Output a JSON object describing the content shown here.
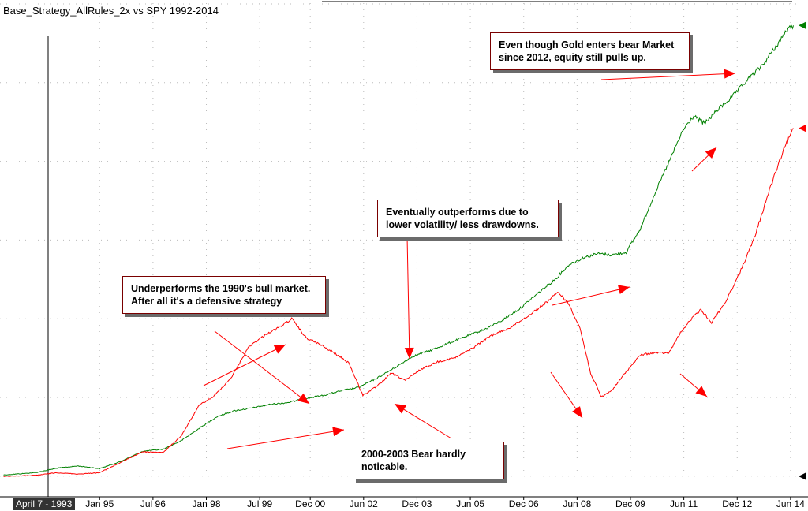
{
  "title": "Base_Strategy_AllRules_2x vs SPY 1992-2014",
  "crosshair_date": "April 7 - 1993",
  "colors": {
    "strategy": "#008000",
    "spy": "#ff0000",
    "annotation_arrow": "#ff0000",
    "callout_border": "#7a0000"
  },
  "annotations": [
    {
      "text": "Even though Gold enters bear Market since 2012, equity still pulls up."
    },
    {
      "text": "Eventually outperforms due to lower volatility/ less drawdowns."
    },
    {
      "text": "Underperforms the 1990's bull market. After all it's a defensive strategy"
    },
    {
      "text": "2000-2003 Bear hardly noticable."
    }
  ],
  "chart_data": {
    "type": "line",
    "title": "Base_Strategy_AllRules_2x vs SPY 1992-2014",
    "x_tick_labels": [
      "Jan 95",
      "Jul 96",
      "Jan 98",
      "Jul 99",
      "Dec 00",
      "Jun 02",
      "Dec 03",
      "Jun 05",
      "Dec 06",
      "Jun 08",
      "Dec 09",
      "Jun 11",
      "Dec 12",
      "Jun 14"
    ],
    "x_tick_values": [
      1995.0,
      1996.5,
      1998.0,
      1999.5,
      2000.92,
      2002.42,
      2003.92,
      2005.42,
      2006.92,
      2008.42,
      2009.92,
      2011.42,
      2012.92,
      2014.42
    ],
    "xlim": [
      1992.2,
      2014.6
    ],
    "ylim": [
      0,
      100
    ],
    "y_scale_note": "no y-axis labels visible; values on a relative 0-100 scale",
    "grid": true,
    "series": [
      {
        "color": "#008000",
        "x": [
          1992.3,
          1993.2,
          1993.8,
          1994.4,
          1995.0,
          1995.6,
          1996.2,
          1996.8,
          1997.3,
          1997.8,
          1998.3,
          1998.8,
          1999.3,
          1999.8,
          2000.3,
          2000.8,
          2001.3,
          2001.8,
          2002.3,
          2002.8,
          2003.3,
          2003.8,
          2004.3,
          2004.8,
          2005.3,
          2005.8,
          2006.3,
          2006.8,
          2007.3,
          2007.8,
          2008.2,
          2008.6,
          2009.0,
          2009.4,
          2009.8,
          2010.2,
          2010.6,
          2011.0,
          2011.4,
          2011.7,
          2012.0,
          2012.4,
          2012.8,
          2013.2,
          2013.6,
          2014.0,
          2014.3,
          2014.5
        ],
        "y": [
          0.3,
          0.8,
          1.8,
          2.3,
          1.7,
          3.3,
          5.5,
          6.0,
          7.9,
          10.6,
          13.2,
          14.5,
          15.1,
          15.9,
          16.3,
          17.2,
          17.9,
          18.9,
          19.7,
          21.7,
          24.0,
          26.5,
          27.8,
          29.4,
          30.9,
          32.4,
          34.4,
          37.0,
          40.3,
          43.5,
          46.8,
          48.3,
          49.2,
          48.9,
          49.5,
          54.7,
          62.4,
          69.4,
          76.5,
          79.6,
          77.9,
          81.2,
          84.0,
          87.5,
          90.6,
          94.8,
          98.4,
          99.6
        ]
      },
      {
        "color": "#ff0000",
        "x": [
          1992.3,
          1993.2,
          1993.8,
          1994.4,
          1995.0,
          1995.6,
          1996.2,
          1996.8,
          1997.3,
          1997.8,
          1998.2,
          1998.7,
          1999.2,
          1999.7,
          2000.0,
          2000.4,
          2000.8,
          2001.2,
          2001.6,
          2002.0,
          2002.4,
          2002.8,
          2003.2,
          2003.6,
          2004.0,
          2004.5,
          2005.0,
          2005.5,
          2006.0,
          2006.5,
          2007.0,
          2007.5,
          2007.9,
          2008.2,
          2008.5,
          2008.8,
          2009.1,
          2009.4,
          2009.8,
          2010.2,
          2010.6,
          2011.0,
          2011.3,
          2011.6,
          2011.9,
          2012.2,
          2012.6,
          2013.0,
          2013.4,
          2013.8,
          2014.2,
          2014.5
        ],
        "y": [
          0.0,
          0.2,
          0.8,
          0.5,
          0.8,
          3.1,
          5.4,
          5.3,
          9.0,
          15.7,
          17.6,
          21.8,
          28.7,
          31.5,
          32.7,
          34.8,
          30.6,
          29.1,
          27.2,
          25.1,
          17.9,
          19.9,
          22.8,
          21.2,
          23.5,
          25.3,
          26.2,
          28.4,
          31.1,
          32.7,
          35.2,
          38.1,
          40.7,
          37.9,
          32.8,
          22.8,
          17.5,
          19.0,
          23.1,
          26.8,
          27.3,
          27.2,
          31.4,
          34.5,
          36.8,
          34.0,
          38.6,
          45.1,
          52.6,
          62.6,
          71.6,
          76.9
        ]
      }
    ]
  }
}
